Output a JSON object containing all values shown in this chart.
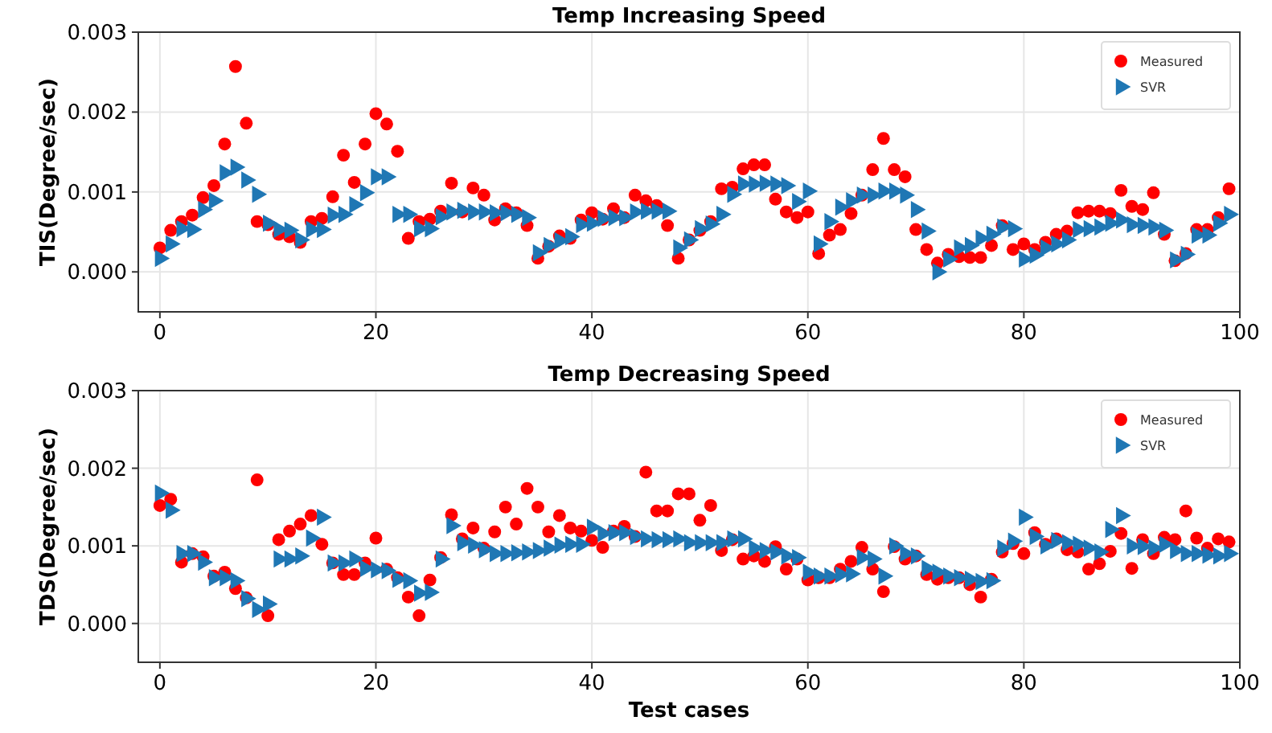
{
  "chart_data": [
    {
      "type": "scatter",
      "title": "Temp Increasing Speed",
      "ylabel": "TIS(Degree/sec)",
      "x": [
        0,
        1,
        2,
        3,
        4,
        5,
        6,
        7,
        8,
        9,
        10,
        11,
        12,
        13,
        14,
        15,
        16,
        17,
        18,
        19,
        20,
        21,
        22,
        23,
        24,
        25,
        26,
        27,
        28,
        29,
        30,
        31,
        32,
        33,
        34,
        35,
        36,
        37,
        38,
        39,
        40,
        41,
        42,
        43,
        44,
        45,
        46,
        47,
        48,
        49,
        50,
        51,
        52,
        53,
        54,
        55,
        56,
        57,
        58,
        59,
        60,
        61,
        62,
        63,
        64,
        65,
        66,
        67,
        68,
        69,
        70,
        71,
        72,
        73,
        74,
        75,
        76,
        77,
        78,
        79,
        80,
        81,
        82,
        83,
        84,
        85,
        86,
        87,
        88,
        89,
        90,
        91,
        92,
        93,
        94,
        95,
        96,
        97,
        98,
        99
      ],
      "xlim": [
        -2,
        100
      ],
      "xticks": [
        0,
        20,
        40,
        60,
        80,
        100
      ],
      "ylim": [
        -0.0005,
        0.003
      ],
      "yticks": [
        {
          "value": 0,
          "label": "0.000"
        },
        {
          "value": 0.001,
          "label": "0.001"
        },
        {
          "value": 0.002,
          "label": "0.002"
        },
        {
          "value": 0.003,
          "label": "0.003"
        }
      ],
      "grid": true,
      "legend": "top right",
      "series": [
        {
          "name": "Measured",
          "color": "#ff0000",
          "marker": "circle",
          "values": [
            0.0003,
            0.00052,
            0.00063,
            0.00071,
            0.00093,
            0.00108,
            0.0016,
            0.00257,
            0.00186,
            0.00063,
            0.00059,
            0.00047,
            0.00044,
            0.00037,
            0.00063,
            0.00067,
            0.00094,
            0.00146,
            0.00112,
            0.0016,
            0.00198,
            0.00185,
            0.00151,
            0.00042,
            0.00063,
            0.00066,
            0.00076,
            0.00111,
            0.00075,
            0.00105,
            0.00096,
            0.00065,
            0.00079,
            0.00074,
            0.00058,
            0.00017,
            0.00032,
            0.00045,
            0.00042,
            0.00065,
            0.00074,
            0.00066,
            0.00079,
            0.00068,
            0.00096,
            0.00089,
            0.00083,
            0.00058,
            0.00017,
            0.0004,
            0.00052,
            0.00063,
            0.00104,
            0.00106,
            0.00129,
            0.00134,
            0.00134,
            0.00091,
            0.00075,
            0.00068,
            0.00075,
            0.00023,
            0.00046,
            0.00053,
            0.00073,
            0.00096,
            0.00128,
            0.00167,
            0.00128,
            0.00119,
            0.00053,
            0.00028,
            0.00011,
            0.00022,
            0.00019,
            0.00018,
            0.00018,
            0.00033,
            0.00058,
            0.00028,
            0.00035,
            0.00028,
            0.00037,
            0.00047,
            0.00051,
            0.00074,
            0.00076,
            0.00076,
            0.00073,
            0.00102,
            0.00082,
            0.00078,
            0.00099,
            0.00047,
            0.00014,
            0.00023,
            0.00053,
            0.00053,
            0.00068,
            0.00104
          ]
        },
        {
          "name": "SVR",
          "color": "#1f77b4",
          "marker": "triangle",
          "values": [
            0.00017,
            0.00035,
            0.00054,
            0.00053,
            0.00078,
            0.00089,
            0.00124,
            0.00131,
            0.00115,
            0.00097,
            0.00061,
            0.00053,
            0.00052,
            0.0004,
            0.00053,
            0.00053,
            0.00071,
            0.00072,
            0.00084,
            0.00099,
            0.00119,
            0.00119,
            0.00072,
            0.00072,
            0.00054,
            0.00054,
            0.00069,
            0.00075,
            0.00077,
            0.00075,
            0.00075,
            0.00074,
            0.00074,
            0.00072,
            0.00068,
            0.00024,
            0.00033,
            0.00039,
            0.00044,
            0.00059,
            0.00061,
            0.00067,
            0.00068,
            0.00068,
            0.00075,
            0.00076,
            0.00076,
            0.00076,
            0.0003,
            0.0004,
            0.00054,
            0.0006,
            0.00072,
            0.00097,
            0.0011,
            0.0011,
            0.00111,
            0.0011,
            0.00108,
            0.00088,
            0.00101,
            0.00035,
            0.00063,
            0.00081,
            0.00089,
            0.00096,
            0.00096,
            0.00101,
            0.00101,
            0.00096,
            0.00078,
            0.00051,
            0,
            0.00016,
            0.0003,
            0.00033,
            0.00042,
            0.00047,
            0.00056,
            0.00054,
            0.00016,
            0.00021,
            0.0003,
            0.00035,
            0.0004,
            0.00053,
            0.00054,
            0.00056,
            0.00061,
            0.00065,
            0.00059,
            0.00058,
            0.00056,
            0.00052,
            0.00015,
            0.00022,
            0.00046,
            0.00046,
            0.00061,
            0.00072
          ]
        }
      ]
    },
    {
      "type": "scatter",
      "title": "Temp Decreasing Speed",
      "ylabel": "TDS(Degree/sec)",
      "xlabel": "Test cases",
      "x": [
        0,
        1,
        2,
        3,
        4,
        5,
        6,
        7,
        8,
        9,
        10,
        11,
        12,
        13,
        14,
        15,
        16,
        17,
        18,
        19,
        20,
        21,
        22,
        23,
        24,
        25,
        26,
        27,
        28,
        29,
        30,
        31,
        32,
        33,
        34,
        35,
        36,
        37,
        38,
        39,
        40,
        41,
        42,
        43,
        44,
        45,
        46,
        47,
        48,
        49,
        50,
        51,
        52,
        53,
        54,
        55,
        56,
        57,
        58,
        59,
        60,
        61,
        62,
        63,
        64,
        65,
        66,
        67,
        68,
        69,
        70,
        71,
        72,
        73,
        74,
        75,
        76,
        77,
        78,
        79,
        80,
        81,
        82,
        83,
        84,
        85,
        86,
        87,
        88,
        89,
        90,
        91,
        92,
        93,
        94,
        95,
        96,
        97,
        98,
        99
      ],
      "xlim": [
        -2,
        100
      ],
      "xticks": [
        0,
        20,
        40,
        60,
        80,
        100
      ],
      "ylim": [
        -0.0005,
        0.003
      ],
      "yticks": [
        {
          "value": 0,
          "label": "0.000"
        },
        {
          "value": 0.001,
          "label": "0.001"
        },
        {
          "value": 0.002,
          "label": "0.002"
        },
        {
          "value": 0.003,
          "label": "0.003"
        }
      ],
      "grid": true,
      "legend": "top right",
      "series": [
        {
          "name": "Measured",
          "color": "#ff0000",
          "marker": "circle",
          "values": [
            0.00152,
            0.0016,
            0.00079,
            0.0009,
            0.00086,
            0.00061,
            0.00066,
            0.00045,
            0.00033,
            0.00185,
            0.0001,
            0.00108,
            0.00119,
            0.00128,
            0.00139,
            0.00102,
            0.00078,
            0.00063,
            0.00063,
            0.00078,
            0.0011,
            0.0007,
            0.00059,
            0.00034,
            0.0001,
            0.00056,
            0.00085,
            0.0014,
            0.00109,
            0.00123,
            0.00097,
            0.00118,
            0.0015,
            0.00128,
            0.00174,
            0.0015,
            0.00118,
            0.00139,
            0.00123,
            0.00119,
            0.00107,
            0.00098,
            0.00119,
            0.00125,
            0.00112,
            0.00195,
            0.00145,
            0.00145,
            0.00167,
            0.00167,
            0.00133,
            0.00152,
            0.00094,
            0.00108,
            0.00083,
            0.00087,
            0.0008,
            0.00099,
            0.0007,
            0.00083,
            0.00056,
            0.00059,
            0.00059,
            0.0007,
            0.0008,
            0.00098,
            0.0007,
            0.00041,
            0.00099,
            0.00083,
            0.00087,
            0.00063,
            0.00057,
            0.00059,
            0.00059,
            0.0005,
            0.00034,
            0.00057,
            0.00092,
            0.00103,
            0.0009,
            0.00117,
            0.00102,
            0.00109,
            0.00095,
            0.00092,
            0.0007,
            0.00077,
            0.00093,
            0.00116,
            0.00071,
            0.00108,
            0.0009,
            0.00111,
            0.00108,
            0.00145,
            0.0011,
            0.00097,
            0.00109,
            0.00105
          ]
        },
        {
          "name": "SVR",
          "color": "#1f77b4",
          "marker": "triangle",
          "values": [
            0.00168,
            0.00146,
            0.0009,
            0.0009,
            0.00079,
            0.00059,
            0.00059,
            0.00055,
            0.00032,
            0.00018,
            0.00025,
            0.00083,
            0.00083,
            0.00087,
            0.0011,
            0.00137,
            0.00078,
            0.00078,
            0.00083,
            0.00071,
            0.00069,
            0.00068,
            0.00057,
            0.00055,
            0.00039,
            0.0004,
            0.00083,
            0.00126,
            0.00104,
            0.00101,
            0.00095,
            0.0009,
            0.0009,
            0.00091,
            0.00092,
            0.00094,
            0.00097,
            0.00101,
            0.00102,
            0.00102,
            0.00124,
            0.00116,
            0.00117,
            0.00117,
            0.00112,
            0.00109,
            0.00108,
            0.00108,
            0.00109,
            0.00104,
            0.00104,
            0.00104,
            0.00104,
            0.00109,
            0.00109,
            0.00097,
            0.00094,
            0.00092,
            0.00087,
            0.00085,
            0.00066,
            0.00061,
            0.00061,
            0.00063,
            0.00064,
            0.00085,
            0.00083,
            0.00061,
            0.001,
            0.0009,
            0.00087,
            0.00071,
            0.00066,
            0.00061,
            0.00059,
            0.00057,
            0.00054,
            0.00055,
            0.00097,
            0.00106,
            0.00137,
            0.00112,
            0.001,
            0.00107,
            0.00104,
            0.00102,
            0.00097,
            0.00092,
            0.00121,
            0.00139,
            0.001,
            0.00099,
            0.00097,
            0.00102,
            0.00094,
            0.0009,
            0.0009,
            0.00088,
            0.00087,
            0.0009
          ]
        }
      ]
    }
  ]
}
